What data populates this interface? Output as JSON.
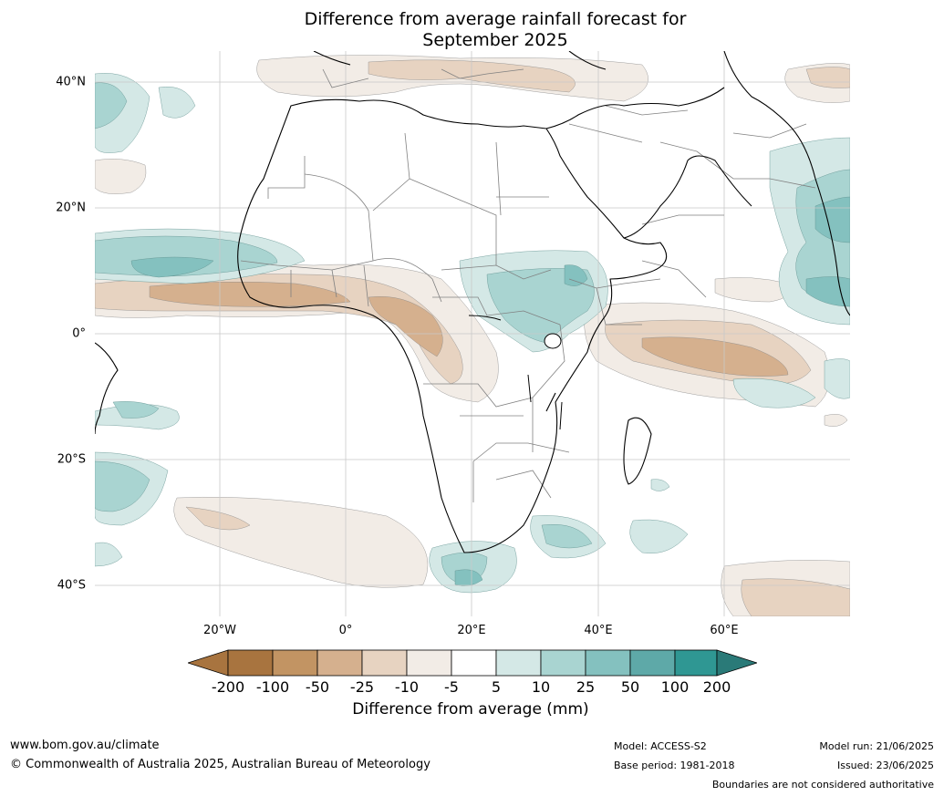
{
  "title": {
    "line1": "Difference from average rainfall forecast for",
    "line2": "September 2025"
  },
  "map": {
    "lat_labels": [
      "40°N",
      "20°N",
      "0°",
      "20°S",
      "40°S"
    ],
    "lon_labels": [
      "20°W",
      "0°",
      "20°E",
      "40°E",
      "60°E"
    ],
    "colors": {
      "dry": [
        "#a8743f",
        "#c29463",
        "#d5b08e",
        "#e7d3c1",
        "#f2ece6"
      ],
      "neutral": "#ffffff",
      "wet": [
        "#d4e8e6",
        "#a9d4d1",
        "#84c1bf",
        "#5ea9a8",
        "#2f9793"
      ],
      "land_outline": "#000000",
      "borders": "#808080",
      "grid": "#c8c8c8"
    }
  },
  "colorbar": {
    "ticks": [
      "-200",
      "-100",
      "-50",
      "-25",
      "-10",
      "-5",
      "5",
      "10",
      "25",
      "50",
      "100",
      "200"
    ],
    "label": "Difference from average (mm)"
  },
  "footer": {
    "website": "www.bom.gov.au/climate",
    "copyright": "© Commonwealth of Australia 2025, Australian Bureau of Meteorology",
    "model": "Model: ACCESS-S2",
    "base_period": "Base period: 1981-2018",
    "model_run": "Model run: 21/06/2025",
    "issued": "Issued: 23/06/2025",
    "disclaimer": "Boundaries are not considered authoritative"
  }
}
